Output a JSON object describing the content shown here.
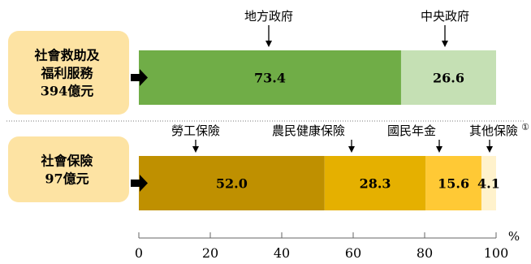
{
  "chart_data": {
    "type": "bar",
    "orientation": "horizontal",
    "stacked": true,
    "xlim": [
      0,
      100
    ],
    "x_unit": "%",
    "x_ticks": [
      0,
      20,
      40,
      60,
      80,
      100
    ],
    "footnote_mark": "①",
    "bars": [
      {
        "category_lines": [
          "社會救助及",
          "福利服務",
          "394億元"
        ],
        "segments": [
          {
            "name": "地方政府",
            "value": 73.4,
            "label": "73.4",
            "color": "#70ad47"
          },
          {
            "name": "中央政府",
            "value": 26.6,
            "label": "26.6",
            "color": "#c5e0b4"
          }
        ]
      },
      {
        "category_lines": [
          "社會保險",
          "97億元"
        ],
        "segments": [
          {
            "name": "勞工保險",
            "value": 52.0,
            "label": "52.0",
            "color": "#bf9000"
          },
          {
            "name": "農民健康保險",
            "value": 28.3,
            "label": "28.3",
            "color": "#e5b000"
          },
          {
            "name": "國民年金",
            "value": 15.6,
            "label": "15.6",
            "color": "#ffc935"
          },
          {
            "name": "其他保險",
            "value": 4.1,
            "label": "4.1",
            "color": "#fff2cc"
          }
        ]
      }
    ]
  }
}
